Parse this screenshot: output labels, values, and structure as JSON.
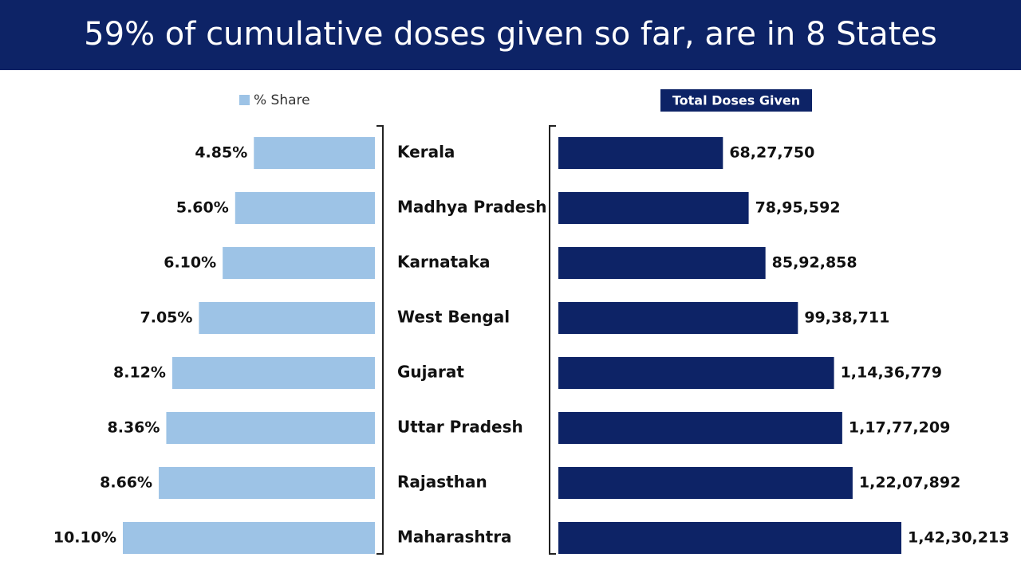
{
  "chart_data": {
    "type": "bar",
    "orientation": "horizontal",
    "title": "59% of cumulative doses given so far, are in 8 States",
    "categories": [
      "Kerala",
      "Madhya Pradesh",
      "Karnataka",
      "West Bengal",
      "Gujarat",
      "Uttar Pradesh",
      "Rajasthan",
      "Maharashtra"
    ],
    "series": [
      {
        "name": "% Share",
        "color": "#9dc3e6",
        "values": [
          4.85,
          5.6,
          6.1,
          7.05,
          8.12,
          8.36,
          8.66,
          10.1
        ],
        "value_labels": [
          "4.85%",
          "5.60%",
          "6.10%",
          "7.05%",
          "8.12%",
          "8.36%",
          "8.66%",
          "10.10%"
        ]
      },
      {
        "name": "Total Doses Given",
        "color": "#0d2366",
        "values": [
          6827750,
          7895592,
          8592858,
          9938711,
          11436779,
          11777209,
          12207892,
          14230213
        ],
        "value_labels": [
          "68,27,750",
          "78,95,592",
          "85,92,858",
          "99,38,711",
          "1,14,36,779",
          "1,17,77,209",
          "1,22,07,892",
          "1,42,30,213"
        ]
      }
    ]
  }
}
